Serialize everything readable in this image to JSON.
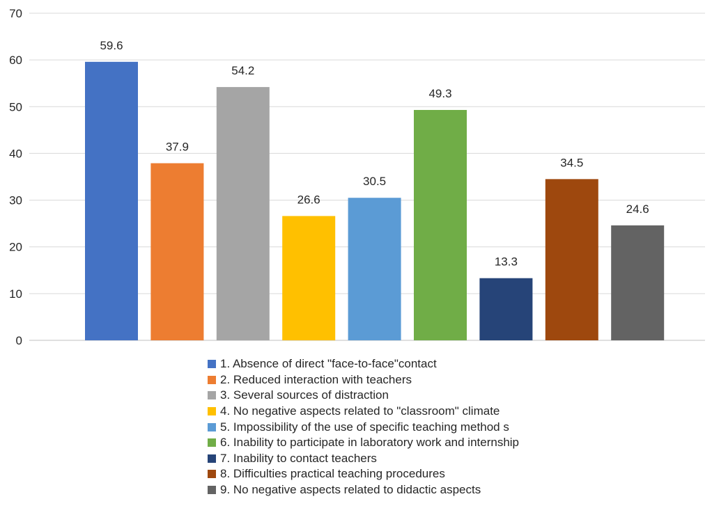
{
  "chart_data": {
    "type": "bar",
    "categories": [
      "1. Absence of direct \"face-to-face\"contact",
      "2. Reduced interaction with teachers",
      "3. Several sources of distraction",
      "4. No negative aspects related to \"classroom\" climate",
      "5. Impossibility of the use of specific teaching method s",
      "6. Inability to participate in laboratory work and internship",
      "7. Inability to contact teachers",
      "8. Difficulties practical teaching procedures",
      "9. No negative aspects related to didactic aspects"
    ],
    "values": [
      59.6,
      37.9,
      54.2,
      26.6,
      30.5,
      49.3,
      13.3,
      34.5,
      24.6
    ],
    "value_labels": [
      "59.6",
      "37.9",
      "54.2",
      "26.6",
      "30.5",
      "49.3",
      "13.3",
      "34.5",
      "24.6"
    ],
    "colors": [
      "#4472C4",
      "#ED7D31",
      "#A5A5A5",
      "#FFC000",
      "#5B9BD5",
      "#70AD47",
      "#264478",
      "#9E480E",
      "#636363"
    ],
    "y_ticks": [
      "0",
      "10",
      "20",
      "30",
      "40",
      "50",
      "60",
      "70"
    ],
    "ylim": [
      0,
      70
    ],
    "grid": true,
    "legend_position": "bottom"
  }
}
